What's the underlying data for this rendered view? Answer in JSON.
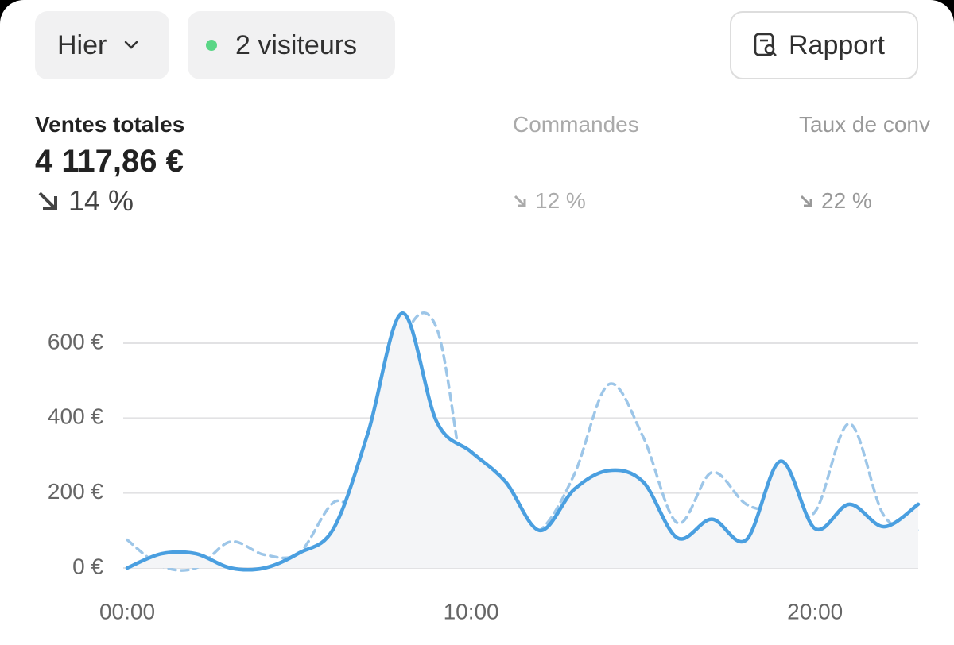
{
  "toolbar": {
    "period": "Hier",
    "visitors": "2 visiteurs",
    "report": "Rapport"
  },
  "metrics": [
    {
      "label": "Ventes totales",
      "value": "4 117,86 €",
      "change": "14 %"
    },
    {
      "label": "Commandes",
      "change": "12 %"
    },
    {
      "label": "Taux de conv",
      "change": "22 %"
    }
  ],
  "chart_data": {
    "type": "line",
    "x": [
      0,
      1,
      2,
      3,
      4,
      5,
      6,
      7,
      8,
      9,
      10,
      11,
      12,
      13,
      14,
      15,
      16,
      17,
      18,
      19,
      20,
      21,
      22,
      23
    ],
    "series": [
      {
        "color": "#4a9fe0",
        "style": "solid",
        "area": true,
        "values": [
          0,
          38,
          38,
          0,
          0,
          40,
          105,
          360,
          680,
          390,
          310,
          230,
          100,
          210,
          260,
          230,
          80,
          130,
          75,
          285,
          105,
          170,
          110,
          170
        ]
      },
      {
        "color": "#9dc6e8",
        "style": "dashed",
        "values": [
          75,
          5,
          0,
          70,
          35,
          40,
          175,
          185,
          600,
          640,
          140,
          110,
          100,
          250,
          490,
          350,
          120,
          255,
          170,
          150,
          150,
          385,
          140,
          100
        ]
      }
    ],
    "xlim": [
      0,
      23
    ],
    "xticks": [
      {
        "value": 0,
        "label": "00:00"
      },
      {
        "value": 10,
        "label": "10:00"
      },
      {
        "value": 20,
        "label": "20:00"
      }
    ],
    "ylim": [
      0,
      600
    ],
    "yticks": [
      {
        "value": 0,
        "label": "0 €"
      },
      {
        "value": 200,
        "label": "200 €"
      },
      {
        "value": 400,
        "label": "400 €"
      },
      {
        "value": 600,
        "label": "600 €"
      }
    ],
    "grid": true
  }
}
